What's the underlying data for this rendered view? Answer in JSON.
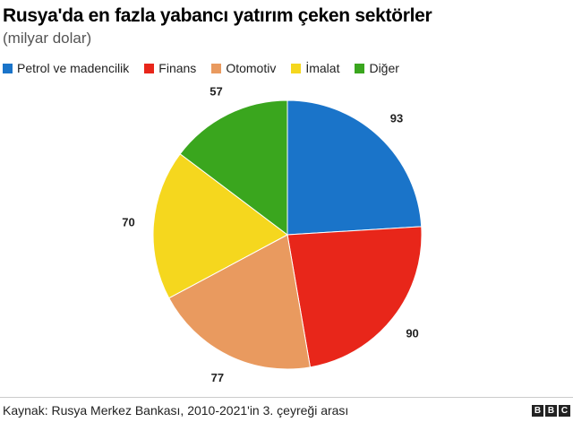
{
  "header": {
    "title": "Rusya'da en fazla yabancı yatırım çeken sektörler",
    "subtitle": "(milyar dolar)"
  },
  "chart_data": {
    "type": "pie",
    "title": "Rusya'da en fazla yabancı yatırım çeken sektörler",
    "subtitle": "(milyar dolar)",
    "legend_position": "top-left",
    "slices": [
      {
        "name": "Petrol ve madencilik",
        "value": 93,
        "color": "#1a74c9"
      },
      {
        "name": "Finans",
        "value": 90,
        "color": "#e8261a"
      },
      {
        "name": "Otomotiv",
        "value": 77,
        "color": "#e99a5f"
      },
      {
        "name": "İmalat",
        "value": 70,
        "color": "#f5d71e"
      },
      {
        "name": "Diğer",
        "value": 57,
        "color": "#3aa61e"
      }
    ]
  },
  "footer": {
    "source": "Kaynak: Rusya Merkez Bankası, 2010-2021'in 3. çeyreği arası",
    "logo_letters": [
      "B",
      "B",
      "C"
    ]
  }
}
